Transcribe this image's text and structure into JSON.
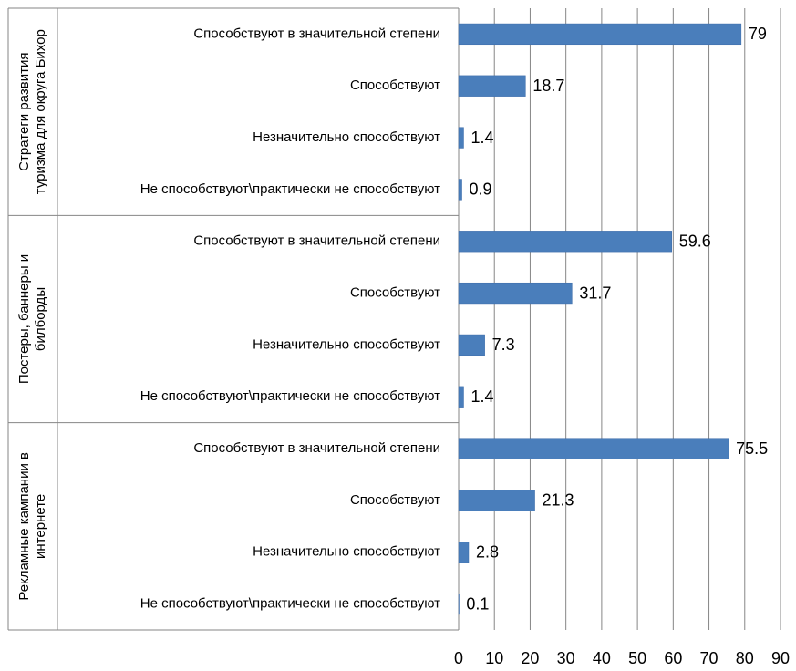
{
  "chart_data": {
    "type": "bar",
    "orientation": "horizontal",
    "xlim": [
      0,
      90
    ],
    "x_ticks": [
      "0",
      "10",
      "20",
      "30",
      "40",
      "50",
      "60",
      "70",
      "80",
      "90"
    ],
    "grid": "vertical",
    "bar_color": "#4a7ebb",
    "groups": [
      {
        "label": "Стратеги развития туризма для округа Бихор",
        "label_lines": [
          "Стратеги развития",
          "туризма для округа Бихор"
        ],
        "categories": [
          "Способствуют в значительной степени",
          "Способствуют",
          "Незначительно способствуют",
          "Не способствуют\\практически не способствуют"
        ],
        "values": [
          79,
          18.7,
          1.4,
          0.9
        ],
        "value_labels": [
          "79",
          "18.7",
          "1.4",
          "0.9"
        ]
      },
      {
        "label": "Постеры, баннеры и билборды",
        "label_lines": [
          "Постеры, баннеры и",
          "билборды"
        ],
        "categories": [
          "Способствуют в значительной степени",
          "Способствуют",
          "Незначительно способствуют",
          "Не способствуют\\практически не способствуют"
        ],
        "values": [
          59.6,
          31.7,
          7.3,
          1.4
        ],
        "value_labels": [
          "59.6",
          "31.7",
          "7.3",
          "1.4"
        ]
      },
      {
        "label": "Рекламные кампании в интернете",
        "label_lines": [
          "Рекламные кампании в",
          "интернете"
        ],
        "categories": [
          "Способствуют в значительной степени",
          "Способствуют",
          "Незначительно способствуют",
          "Не способствуют\\практически не способствуют"
        ],
        "values": [
          75.5,
          21.3,
          2.8,
          0.1
        ],
        "value_labels": [
          "75.5",
          "21.3",
          "2.8",
          "0.1"
        ]
      }
    ]
  }
}
